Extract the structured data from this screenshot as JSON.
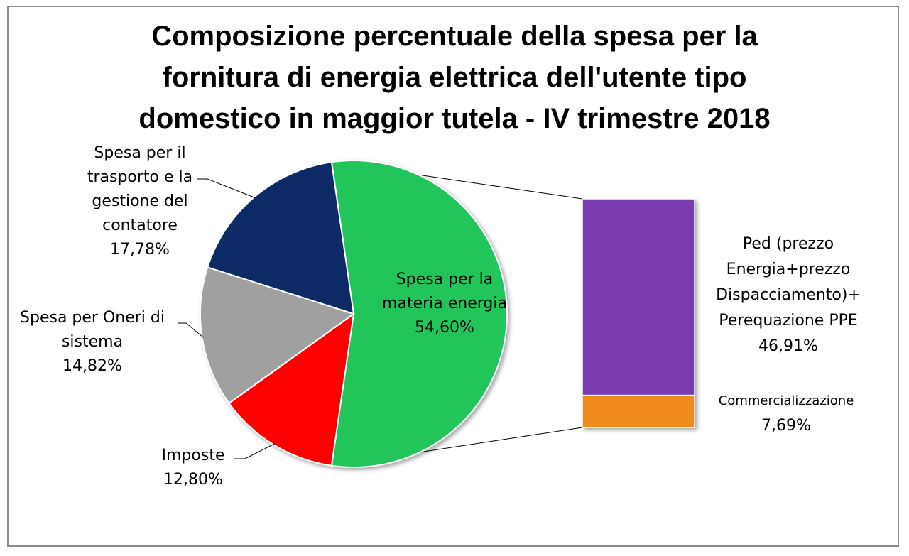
{
  "chart_data": {
    "type": "bar-of-pie",
    "title_lines": [
      "Composizione percentuale della spesa per la",
      "fornitura di energia elettrica dell'utente tipo",
      "domestico in maggior tutela - IV trimestre 2018"
    ],
    "pie": {
      "slices": [
        {
          "label_lines": [
            "Spesa per la",
            "materia energia"
          ],
          "percent_label": "54,60%",
          "value": 54.6,
          "color": "#22c55a"
        },
        {
          "label_lines": [
            "Imposte"
          ],
          "percent_label": "12,80%",
          "value": 12.8,
          "color": "#ff0000"
        },
        {
          "label_lines": [
            "Spesa per Oneri di",
            "sistema"
          ],
          "percent_label": "14,82%",
          "value": 14.82,
          "color": "#a0a0a0"
        },
        {
          "label_lines": [
            "Spesa per il",
            "trasporto e la",
            "gestione del",
            "contatore"
          ],
          "percent_label": "17,78%",
          "value": 17.78,
          "color": "#0f2a66"
        }
      ]
    },
    "bar": {
      "breakdown_of": "Spesa per la materia energia",
      "segments": [
        {
          "label_lines": [
            "Ped (prezzo",
            "Energia+prezzo",
            "Dispacciamento)+",
            "Perequazione PPE"
          ],
          "percent_label": "46,91%",
          "value": 46.91,
          "color": "#7a3ab0"
        },
        {
          "label_lines": [
            "Commercializzazione"
          ],
          "percent_label": "7,69%",
          "value": 7.69,
          "color": "#f08a1c"
        }
      ]
    }
  }
}
